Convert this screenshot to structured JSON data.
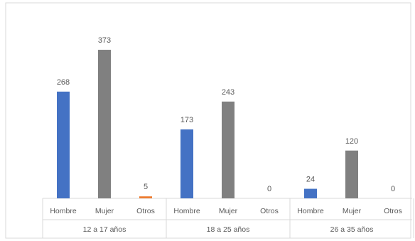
{
  "chart_data": {
    "type": "bar",
    "groups": [
      "12 a 17 años",
      "18 a 25 años",
      "26 a 35 años"
    ],
    "categories": [
      "Hombre",
      "Mujer",
      "Otros"
    ],
    "values": [
      [
        268,
        373,
        5
      ],
      [
        173,
        243,
        0
      ],
      [
        24,
        120,
        0
      ]
    ],
    "colors": [
      "#4472c4",
      "#808080",
      "#ed7d31"
    ],
    "ylim": [
      0,
      400
    ],
    "grid": false,
    "legend": "none"
  }
}
